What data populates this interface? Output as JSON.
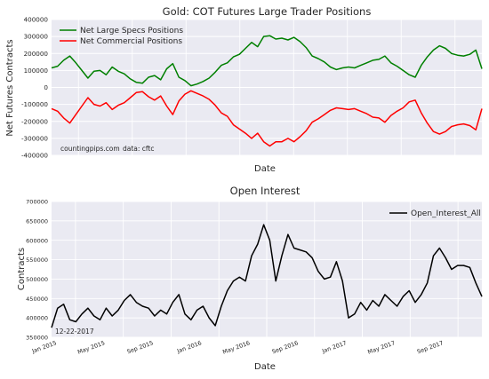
{
  "chart_data": [
    {
      "type": "line",
      "title": "Gold: COT Futures Large Trader Positions",
      "xlabel": "Date",
      "ylabel": "Net Futures Contracts",
      "ylim": [
        -400000,
        400000
      ],
      "yticks": [
        400000,
        300000,
        200000,
        100000,
        0,
        -100000,
        -200000,
        -300000,
        -400000
      ],
      "ytick_labels": [
        "400000",
        "300000",
        "200000",
        "100000",
        "0",
        "-100000",
        "-200000",
        "-300000",
        "-400000"
      ],
      "grid": true,
      "legend_position": "top-left",
      "annotations": [
        "countingpips.com",
        "data: cftc"
      ],
      "x_start": "2015-01-06",
      "x_end": "2017-12-19",
      "series": [
        {
          "name": "Net Large Specs Positions",
          "color": "#008000",
          "x": [
            "2015-01",
            "2015-01",
            "2015-02",
            "2015-02",
            "2015-03",
            "2015-03",
            "2015-04",
            "2015-04",
            "2015-05",
            "2015-05",
            "2015-06",
            "2015-06",
            "2015-07",
            "2015-07",
            "2015-08",
            "2015-08",
            "2015-09",
            "2015-09",
            "2015-10",
            "2015-10",
            "2015-11",
            "2015-11",
            "2015-12",
            "2015-12",
            "2016-01",
            "2016-01",
            "2016-02",
            "2016-02",
            "2016-03",
            "2016-03",
            "2016-04",
            "2016-04",
            "2016-05",
            "2016-05",
            "2016-06",
            "2016-06",
            "2016-07",
            "2016-07",
            "2016-08",
            "2016-08",
            "2016-09",
            "2016-09",
            "2016-10",
            "2016-10",
            "2016-11",
            "2016-11",
            "2016-12",
            "2016-12",
            "2017-01",
            "2017-01",
            "2017-02",
            "2017-02",
            "2017-03",
            "2017-03",
            "2017-04",
            "2017-04",
            "2017-05",
            "2017-05",
            "2017-06",
            "2017-06",
            "2017-07",
            "2017-07",
            "2017-08",
            "2017-08",
            "2017-09",
            "2017-09",
            "2017-10",
            "2017-10",
            "2017-11",
            "2017-11",
            "2017-12",
            "2017-12"
          ],
          "values": [
            115000,
            125000,
            160000,
            185000,
            145000,
            100000,
            55000,
            95000,
            100000,
            75000,
            120000,
            95000,
            80000,
            50000,
            30000,
            25000,
            60000,
            70000,
            45000,
            110000,
            140000,
            60000,
            40000,
            10000,
            20000,
            35000,
            55000,
            90000,
            130000,
            145000,
            180000,
            195000,
            230000,
            265000,
            240000,
            300000,
            305000,
            285000,
            290000,
            280000,
            295000,
            270000,
            235000,
            185000,
            170000,
            150000,
            120000,
            105000,
            115000,
            120000,
            115000,
            130000,
            145000,
            160000,
            165000,
            185000,
            145000,
            125000,
            100000,
            75000,
            60000,
            130000,
            180000,
            220000,
            245000,
            230000,
            200000,
            190000,
            185000,
            195000,
            220000,
            110000
          ]
        },
        {
          "name": "Net Commercial Positions",
          "color": "#ff0000",
          "x": [
            "2015-01",
            "2015-01",
            "2015-02",
            "2015-02",
            "2015-03",
            "2015-03",
            "2015-04",
            "2015-04",
            "2015-05",
            "2015-05",
            "2015-06",
            "2015-06",
            "2015-07",
            "2015-07",
            "2015-08",
            "2015-08",
            "2015-09",
            "2015-09",
            "2015-10",
            "2015-10",
            "2015-11",
            "2015-11",
            "2015-12",
            "2015-12",
            "2016-01",
            "2016-01",
            "2016-02",
            "2016-02",
            "2016-03",
            "2016-03",
            "2016-04",
            "2016-04",
            "2016-05",
            "2016-05",
            "2016-06",
            "2016-06",
            "2016-07",
            "2016-07",
            "2016-08",
            "2016-08",
            "2016-09",
            "2016-09",
            "2016-10",
            "2016-10",
            "2016-11",
            "2016-11",
            "2016-12",
            "2016-12",
            "2017-01",
            "2017-01",
            "2017-02",
            "2017-02",
            "2017-03",
            "2017-03",
            "2017-04",
            "2017-04",
            "2017-05",
            "2017-05",
            "2017-06",
            "2017-06",
            "2017-07",
            "2017-07",
            "2017-08",
            "2017-08",
            "2017-09",
            "2017-09",
            "2017-10",
            "2017-10",
            "2017-11",
            "2017-11",
            "2017-12",
            "2017-12"
          ],
          "values": [
            -125000,
            -140000,
            -180000,
            -210000,
            -160000,
            -110000,
            -60000,
            -100000,
            -110000,
            -90000,
            -130000,
            -105000,
            -90000,
            -60000,
            -30000,
            -25000,
            -55000,
            -75000,
            -50000,
            -110000,
            -160000,
            -80000,
            -40000,
            -20000,
            -35000,
            -50000,
            -70000,
            -105000,
            -150000,
            -170000,
            -220000,
            -245000,
            -270000,
            -300000,
            -270000,
            -320000,
            -345000,
            -320000,
            -320000,
            -300000,
            -320000,
            -290000,
            -255000,
            -205000,
            -185000,
            -160000,
            -135000,
            -120000,
            -125000,
            -130000,
            -125000,
            -140000,
            -155000,
            -175000,
            -180000,
            -205000,
            -165000,
            -140000,
            -120000,
            -85000,
            -75000,
            -150000,
            -210000,
            -260000,
            -275000,
            -260000,
            -230000,
            -220000,
            -215000,
            -225000,
            -250000,
            -125000
          ]
        }
      ]
    },
    {
      "type": "line",
      "title": "Open Interest",
      "xlabel": "Date",
      "ylabel": "Contracts",
      "ylim": [
        350000,
        700000
      ],
      "yticks": [
        350000,
        400000,
        450000,
        500000,
        550000,
        600000,
        650000,
        700000
      ],
      "ytick_labels": [
        "350000",
        "400000",
        "450000",
        "500000",
        "550000",
        "600000",
        "650000",
        "700000"
      ],
      "xtick_labels": [
        "Jan 2015",
        "May 2015",
        "Sep 2015",
        "Jan 2016",
        "May 2016",
        "Sep 2016",
        "Jan 2017",
        "May 2017",
        "Sep 2017"
      ],
      "grid": true,
      "legend_position": "top-right",
      "annotations": [
        "12-22-2017"
      ],
      "series": [
        {
          "name": "Open_Interest_All",
          "color": "#000000",
          "x": [
            "2015-01",
            "2015-01",
            "2015-02",
            "2015-02",
            "2015-03",
            "2015-03",
            "2015-04",
            "2015-04",
            "2015-05",
            "2015-05",
            "2015-06",
            "2015-06",
            "2015-07",
            "2015-07",
            "2015-08",
            "2015-08",
            "2015-09",
            "2015-09",
            "2015-10",
            "2015-10",
            "2015-11",
            "2015-11",
            "2015-12",
            "2015-12",
            "2016-01",
            "2016-01",
            "2016-02",
            "2016-02",
            "2016-03",
            "2016-03",
            "2016-04",
            "2016-04",
            "2016-05",
            "2016-05",
            "2016-06",
            "2016-06",
            "2016-07",
            "2016-07",
            "2016-08",
            "2016-08",
            "2016-09",
            "2016-09",
            "2016-10",
            "2016-10",
            "2016-11",
            "2016-11",
            "2016-12",
            "2016-12",
            "2017-01",
            "2017-01",
            "2017-02",
            "2017-02",
            "2017-03",
            "2017-03",
            "2017-04",
            "2017-04",
            "2017-05",
            "2017-05",
            "2017-06",
            "2017-06",
            "2017-07",
            "2017-07",
            "2017-08",
            "2017-08",
            "2017-09",
            "2017-09",
            "2017-10",
            "2017-10",
            "2017-11",
            "2017-11",
            "2017-12",
            "2017-12"
          ],
          "values": [
            375000,
            425000,
            435000,
            395000,
            390000,
            410000,
            425000,
            405000,
            395000,
            425000,
            405000,
            420000,
            445000,
            460000,
            440000,
            430000,
            425000,
            405000,
            420000,
            410000,
            440000,
            460000,
            410000,
            395000,
            420000,
            430000,
            400000,
            380000,
            430000,
            470000,
            495000,
            505000,
            495000,
            560000,
            590000,
            640000,
            600000,
            495000,
            560000,
            615000,
            580000,
            575000,
            570000,
            555000,
            520000,
            500000,
            505000,
            545000,
            495000,
            400000,
            410000,
            440000,
            420000,
            445000,
            430000,
            460000,
            445000,
            430000,
            455000,
            470000,
            440000,
            460000,
            490000,
            560000,
            580000,
            555000,
            525000,
            535000,
            535000,
            530000,
            490000,
            455000
          ]
        }
      ]
    }
  ]
}
